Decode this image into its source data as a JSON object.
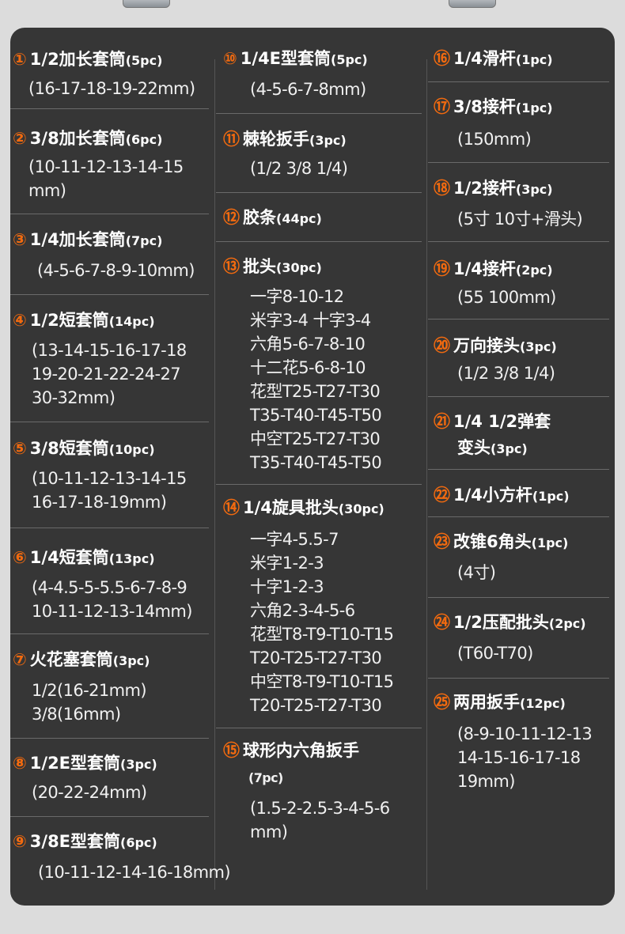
{
  "colors": {
    "background": "#dcdcdc",
    "panel": "#363636",
    "accent": "#f26a0f",
    "text": "#ffffff"
  },
  "columns": [
    [
      {
        "num": "①",
        "title": "1/2加长套筒",
        "qty": "(5pc)",
        "lines": [
          "(16-17-18-19-22mm)"
        ]
      },
      {
        "num": "②",
        "title": "3/8加长套筒",
        "qty": "(6pc)",
        "lines": [
          "(10-11-12-13-14-15",
          "mm)"
        ]
      },
      {
        "num": "③",
        "title": "1/4加长套筒",
        "qty": "(7pc)",
        "lines": [
          "(4-5-6-7-8-9-10mm)"
        ]
      },
      {
        "num": "④",
        "title": "1/2短套筒",
        "qty": "(14pc)",
        "lines": [
          "(13-14-15-16-17-18",
          "19-20-21-22-24-27",
          "30-32mm)"
        ]
      },
      {
        "num": "⑤",
        "title": "3/8短套筒",
        "qty": "(10pc)",
        "lines": [
          "(10-11-12-13-14-15",
          "16-17-18-19mm)"
        ]
      },
      {
        "num": "⑥",
        "title": "1/4短套筒",
        "qty": "(13pc)",
        "lines": [
          "(4-4.5-5-5.5-6-7-8-9",
          "10-11-12-13-14mm)"
        ]
      },
      {
        "num": "⑦",
        "title": "火花塞套筒",
        "qty": "(3pc)",
        "lines": [
          "1/2(16-21mm)",
          "3/8(16mm)"
        ]
      },
      {
        "num": "⑧",
        "title": "1/2E型套筒",
        "qty": "(3pc)",
        "lines": [
          "(20-22-24mm)"
        ]
      },
      {
        "num": "⑨",
        "title": "3/8E型套筒",
        "qty": "(6pc)",
        "lines": [
          "(10-11-12-14-16-18mm)"
        ]
      }
    ],
    [
      {
        "num": "⑩",
        "title": "1/4E型套筒",
        "qty": "(5pc)",
        "lines": [
          "(4-5-6-7-8mm)"
        ]
      },
      {
        "num": "⑪",
        "title": "棘轮扳手",
        "qty": "(3pc)",
        "lines": [
          "(1/2 3/8 1/4)"
        ]
      },
      {
        "num": "⑫",
        "title": "胶条",
        "qty": "(44pc)",
        "lines": []
      },
      {
        "num": "⑬",
        "title": "批头",
        "qty": "(30pc)",
        "lines": [
          "一字8-10-12",
          "米字3-4 十字3-4",
          "六角5-6-7-8-10",
          "十二花5-6-8-10",
          "花型T25-T27-T30",
          "T35-T40-T45-T50",
          "中空T25-T27-T30",
          "T35-T40-T45-T50"
        ]
      },
      {
        "num": "⑭",
        "title": "1/4旋具批头",
        "qty": "(30pc)",
        "lines": [
          "一字4-5.5-7",
          "米字1-2-3",
          "十字1-2-3",
          "六角2-3-4-5-6",
          "花型T8-T9-T10-T15",
          "T20-T25-T27-T30",
          "中空T8-T9-T10-T15",
          "T20-T25-T27-T30"
        ]
      },
      {
        "num": "⑮",
        "title": "球形内六角扳手",
        "qty": "(7pc)",
        "lines": [
          "(1.5-2-2.5-3-4-5-6",
          "mm)"
        ]
      }
    ],
    [
      {
        "num": "⑯",
        "title": "1/4滑杆",
        "qty": "(1pc)",
        "lines": []
      },
      {
        "num": "⑰",
        "title": "3/8接杆",
        "qty": "(1pc)",
        "lines": [
          "(150mm)"
        ]
      },
      {
        "num": "⑱",
        "title": "1/2接杆",
        "qty": "(3pc)",
        "lines": [
          "(5寸 10寸+滑头)"
        ]
      },
      {
        "num": "⑲",
        "title": "1/4接杆",
        "qty": "(2pc)",
        "lines": [
          "(55 100mm)"
        ]
      },
      {
        "num": "⑳",
        "title": "万向接头",
        "qty": "(3pc)",
        "lines": [
          "(1/2 3/8 1/4)"
        ]
      },
      {
        "num": "㉑",
        "title": "1/4 1/2弹套",
        "qty": "",
        "title2": "变头",
        "qty2": "(3pc)",
        "lines": []
      },
      {
        "num": "㉒",
        "title": "1/4小方杆",
        "qty": "(1pc)",
        "lines": []
      },
      {
        "num": "㉓",
        "title": "改锥6角头",
        "qty": "(1pc)",
        "lines": [
          "(4寸)"
        ]
      },
      {
        "num": "㉔",
        "title": "1/2压配批头",
        "qty": "(2pc)",
        "lines": [
          "(T60-T70)"
        ]
      },
      {
        "num": "㉕",
        "title": "两用扳手",
        "qty": "(12pc)",
        "lines": [
          "(8-9-10-11-12-13",
          "14-15-16-17-18",
          "19mm)"
        ]
      }
    ]
  ]
}
